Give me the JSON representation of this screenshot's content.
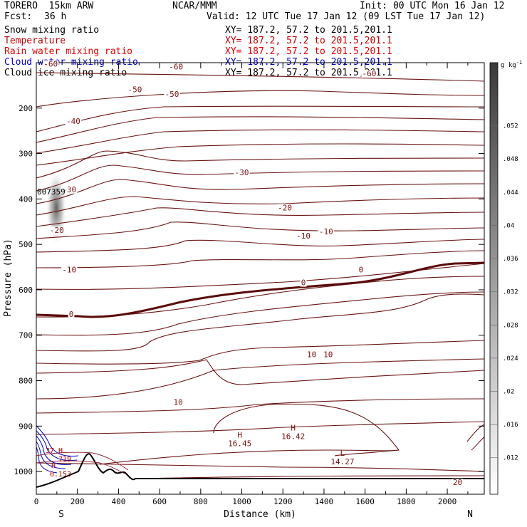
{
  "header": {
    "model": "TORERO  15km ARW",
    "org": "NCAR/MMM",
    "init": "Init: 00 UTC Mon 16 Jan 12",
    "fcst_label": "Fcst:",
    "fcst_value": "36 h",
    "valid": "Valid: 12 UTC Tue 17 Jan 12 (09 LST Tue 17 Jan 12)"
  },
  "fields": [
    {
      "name": "Snow mixing ratio",
      "xy": "XY= 187.2, 57.2 to 201.5,201.1",
      "color": "#000000"
    },
    {
      "name": "Temperature",
      "xy": "XY= 187.2, 57.2 to 201.5,201.1",
      "color": "#c00000"
    },
    {
      "name": "Rain water mixing ratio",
      "xy": "XY= 187.2, 57.2 to 201.5,201.1",
      "color": "#e00000"
    },
    {
      "name": "Cloud water mixing ratio",
      "xy": "XY= 187.2, 57.2 to 201.5,201.1",
      "color": "#0000c0"
    },
    {
      "name": "Cloud ice mixing ratio",
      "xy": "XY= 187.2, 57.2 to 201.5,201.1",
      "color": "#000000"
    }
  ],
  "chart_data": {
    "type": "contour",
    "xlabel": "Distance (km)",
    "ylabel": "Pressure (hPa)",
    "xlim": [
      0,
      2180
    ],
    "ylim": [
      1050,
      100
    ],
    "x_ticks": [
      0,
      200,
      400,
      600,
      800,
      1000,
      1200,
      1400,
      1600,
      1800,
      2000
    ],
    "y_ticks": [
      200,
      300,
      400,
      500,
      600,
      700,
      800,
      900,
      1000
    ],
    "direction_left": "S",
    "direction_right": "N",
    "colorbar": {
      "unit": "g kg",
      "unit_exp": "-1",
      "ticks": [
        ".012",
        ".016",
        ".02",
        ".024",
        ".028",
        ".032",
        ".036",
        ".04",
        ".044",
        ".048",
        ".052"
      ]
    },
    "contour_labels": [
      {
        "text": "-60",
        "x": 70,
        "p": 109
      },
      {
        "text": "-60",
        "x": 680,
        "p": 115
      },
      {
        "text": "-60",
        "x": 1620,
        "p": 130
      },
      {
        "text": "-50",
        "x": 480,
        "p": 165
      },
      {
        "text": "-50",
        "x": 660,
        "p": 175
      },
      {
        "text": "-40",
        "x": 180,
        "p": 235
      },
      {
        "text": "-30",
        "x": 1000,
        "p": 348
      },
      {
        "text": "-30",
        "x": 160,
        "p": 385
      },
      {
        "text": "-20",
        "x": 1210,
        "p": 425
      },
      {
        "text": "-20",
        "x": 100,
        "p": 475
      },
      {
        "text": "-10",
        "x": 1300,
        "p": 487
      },
      {
        "text": "-10",
        "x": 1410,
        "p": 478
      },
      {
        "text": "-10",
        "x": 160,
        "p": 562
      },
      {
        "text": "0",
        "x": 1580,
        "p": 562
      },
      {
        "text": "0",
        "x": 1300,
        "p": 590
      },
      {
        "text": "0",
        "x": 170,
        "p": 660
      },
      {
        "text": "10",
        "x": 1340,
        "p": 748
      },
      {
        "text": "10",
        "x": 1420,
        "p": 748
      },
      {
        "text": "10",
        "x": 690,
        "p": 853
      },
      {
        "text": "20",
        "x": 2050,
        "p": 1030
      }
    ],
    "extrema": [
      {
        "type": "H",
        "value": "16.45",
        "x": 990,
        "p": 925
      },
      {
        "type": "H",
        "value": "16.42",
        "x": 1250,
        "p": 910
      },
      {
        "type": "L",
        "value": "14.27",
        "x": 1490,
        "p": 965
      }
    ],
    "snow_max_label": "007359"
  }
}
